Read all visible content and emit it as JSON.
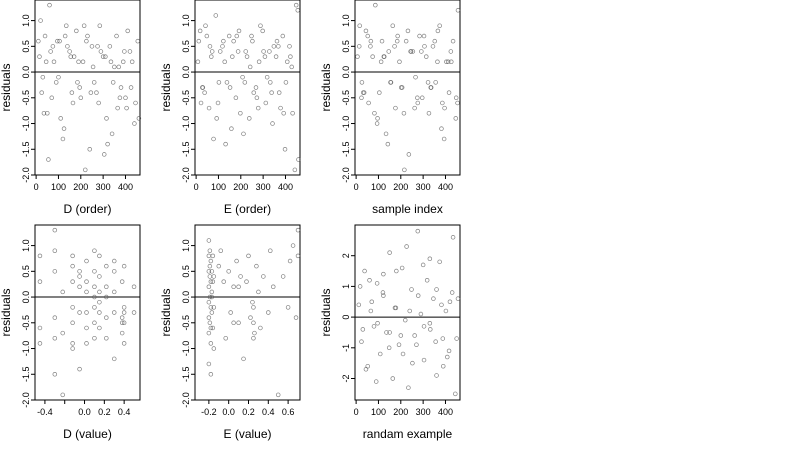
{
  "colors": {
    "point": "#555555",
    "axis": "#000000",
    "background": "#ffffff"
  },
  "chart_data": [
    {
      "type": "scatter",
      "xlabel": "D (order)",
      "ylabel": "residuals",
      "xlim": [
        -5,
        465
      ],
      "ylim": [
        -2.0,
        1.4
      ],
      "xticks": [
        0,
        100,
        200,
        300,
        400
      ],
      "xtick_labels": [
        "0",
        "100",
        "200",
        "300",
        "400"
      ],
      "yticks": [
        -2.0,
        -1.5,
        -1.0,
        -0.5,
        0.0,
        0.5,
        1.0
      ],
      "ytick_labels": [
        "-2.0",
        "-1.5",
        "-1.0",
        "-0.5",
        "0.0",
        "0.5",
        "1.0"
      ],
      "hline": 0,
      "points": {
        "x": [
          15,
          25,
          40,
          50,
          60,
          75,
          90,
          105,
          120,
          135,
          150,
          165,
          180,
          195,
          210,
          225,
          240,
          255,
          270,
          285,
          300,
          315,
          330,
          345,
          360,
          375,
          390,
          405,
          420,
          440,
          10,
          30,
          55,
          80,
          110,
          140,
          170,
          200,
          230,
          260,
          290,
          320,
          350,
          380,
          410,
          445,
          20,
          45,
          70,
          95,
          125,
          155,
          185,
          215,
          245,
          275,
          305,
          335,
          365,
          395,
          425,
          455,
          35,
          65,
          100,
          130,
          160,
          190,
          220,
          250,
          280,
          310,
          340,
          370,
          400,
          430,
          460
        ],
        "y": [
          0.3,
          -0.4,
          0.7,
          -0.8,
          1.3,
          0.5,
          -0.2,
          0.6,
          -1.3,
          0.9,
          0.4,
          -0.6,
          0.8,
          -0.3,
          0.2,
          0.6,
          -1.5,
          0.1,
          -0.4,
          0.9,
          0.3,
          -0.9,
          0.5,
          -0.2,
          0.7,
          -0.5,
          0.2,
          -0.7,
          0.4,
          -1.0,
          0.6,
          -0.1,
          -1.7,
          0.2,
          -0.9,
          0.5,
          0.3,
          -0.5,
          0.7,
          -0.2,
          0.4,
          -1.4,
          0.1,
          -0.3,
          0.8,
          -0.6,
          1.0,
          0.2,
          -0.5,
          0.6,
          -1.1,
          0.3,
          -0.2,
          0.9,
          -0.4,
          0.5,
          -1.6,
          0.2,
          -0.7,
          0.4,
          -0.3,
          0.6,
          -0.8,
          0.4,
          -0.1,
          0.7,
          -0.4,
          0.2,
          -1.9,
          0.5,
          -0.6,
          0.3,
          -1.2,
          0.1,
          -0.5,
          0.2,
          -0.9
        ]
      }
    },
    {
      "type": "scatter",
      "xlabel": "E (order)",
      "ylabel": "residuals",
      "xlim": [
        -5,
        465
      ],
      "ylim": [
        -2.0,
        1.4
      ],
      "xticks": [
        0,
        100,
        200,
        300,
        400
      ],
      "xtick_labels": [
        "0",
        "100",
        "200",
        "300",
        "400"
      ],
      "yticks": [
        -2.0,
        -1.5,
        -1.0,
        -0.5,
        0.0,
        0.5,
        1.0
      ],
      "ytick_labels": [
        "-2.0",
        "-1.5",
        "-1.0",
        "-0.5",
        "0.0",
        "0.5",
        "1.0"
      ],
      "hline": 0,
      "points": {
        "x": [
          12,
          28,
          42,
          58,
          72,
          88,
          102,
          118,
          132,
          148,
          162,
          178,
          192,
          208,
          222,
          238,
          252,
          268,
          282,
          298,
          312,
          328,
          342,
          358,
          372,
          388,
          402,
          418,
          432,
          448,
          8,
          22,
          48,
          78,
          108,
          138,
          168,
          198,
          228,
          258,
          288,
          318,
          348,
          378,
          408,
          442,
          18,
          38,
          68,
          92,
          122,
          152,
          182,
          212,
          242,
          272,
          302,
          332,
          362,
          392,
          422,
          455,
          30,
          62,
          98,
          128,
          158,
          188,
          218,
          248,
          278,
          308,
          338,
          368,
          398,
          428,
          458
        ],
        "y": [
          0.6,
          -0.3,
          0.9,
          -0.7,
          0.4,
          1.1,
          -0.2,
          0.5,
          -1.4,
          0.7,
          0.3,
          -0.5,
          0.8,
          -0.1,
          0.4,
          -0.9,
          0.6,
          -0.3,
          0.2,
          0.8,
          -0.6,
          0.4,
          -1.0,
          0.3,
          -0.4,
          0.7,
          -0.2,
          0.5,
          -0.8,
          1.3,
          0.2,
          -0.6,
          0.7,
          -1.3,
          0.4,
          -0.2,
          0.6,
          -0.8,
          0.3,
          -0.4,
          0.9,
          -0.1,
          0.5,
          -0.7,
          0.2,
          -1.9,
          0.8,
          -0.4,
          0.3,
          -0.9,
          0.6,
          -0.3,
          0.7,
          -1.2,
          0.1,
          -0.5,
          0.4,
          -0.2,
          0.6,
          -0.8,
          0.3,
          1.2,
          -0.3,
          0.5,
          -0.6,
          0.2,
          -1.1,
          0.4,
          -0.2,
          0.7,
          -0.7,
          0.3,
          -0.4,
          0.5,
          -1.5,
          0.1,
          -1.7
        ]
      }
    },
    {
      "type": "scatter",
      "xlabel": "sample index",
      "ylabel": "residuals",
      "xlim": [
        -5,
        465
      ],
      "ylim": [
        -2.0,
        1.4
      ],
      "xticks": [
        0,
        100,
        200,
        300,
        400
      ],
      "xtick_labels": [
        "0",
        "100",
        "200",
        "300",
        "400"
      ],
      "yticks": [
        -2.0,
        -1.5,
        -1.0,
        -0.5,
        0.0,
        0.5,
        1.0
      ],
      "ytick_labels": [
        "-2.0",
        "-1.5",
        "-1.0",
        "-0.5",
        "0.0",
        "0.5",
        "1.0"
      ],
      "hline": 0,
      "points": {
        "x": [
          14,
          26,
          44,
          56,
          74,
          86,
          104,
          116,
          134,
          146,
          164,
          176,
          194,
          206,
          224,
          236,
          254,
          266,
          284,
          296,
          314,
          326,
          344,
          356,
          374,
          386,
          404,
          416,
          434,
          446,
          6,
          24,
          52,
          82,
          112,
          142,
          172,
          202,
          232,
          262,
          292,
          322,
          352,
          382,
          412,
          448,
          16,
          36,
          66,
          96,
          126,
          156,
          186,
          216,
          246,
          276,
          306,
          336,
          366,
          396,
          426,
          456,
          32,
          64,
          94,
          124,
          154,
          184,
          214,
          244,
          274,
          304,
          334,
          364,
          394,
          424,
          454
        ],
        "y": [
          0.5,
          -0.2,
          0.8,
          -0.6,
          0.3,
          1.3,
          -0.4,
          0.6,
          -1.2,
          0.4,
          0.9,
          -0.7,
          0.2,
          -0.3,
          0.6,
          -1.6,
          0.4,
          -0.1,
          0.7,
          -0.5,
          0.3,
          -0.8,
          0.5,
          -0.2,
          0.9,
          -0.6,
          0.2,
          -0.4,
          0.6,
          -0.9,
          0.3,
          -0.5,
          0.7,
          -0.8,
          0.2,
          -1.4,
          0.5,
          -0.3,
          0.8,
          -0.7,
          0.4,
          -0.2,
          0.6,
          -1.1,
          0.2,
          -0.5,
          0.9,
          -0.4,
          0.6,
          -0.9,
          0.3,
          -0.2,
          0.7,
          -1.9,
          0.4,
          -0.6,
          0.5,
          -0.3,
          0.8,
          -0.7,
          0.2,
          1.2,
          -0.4,
          0.5,
          -1.0,
          0.3,
          -0.2,
          0.6,
          -0.8,
          0.4,
          -0.5,
          0.7,
          -0.3,
          0.2,
          -1.3,
          0.4,
          -0.6
        ]
      }
    },
    {
      "type": "scatter",
      "xlabel": "D (value)",
      "ylabel": "residuals",
      "xlim": [
        -0.5,
        0.56
      ],
      "ylim": [
        -2.0,
        1.4
      ],
      "xticks": [
        -0.4,
        -0.2,
        0.0,
        0.2,
        0.4
      ],
      "xtick_labels": [
        "-0.4",
        "",
        "0.0",
        "0.2",
        "0.4"
      ],
      "yticks": [
        -2.0,
        -1.5,
        -1.0,
        -0.5,
        0.0,
        0.5,
        1.0
      ],
      "ytick_labels": [
        "-2.0",
        "-1.5",
        "-1.0",
        "-0.5",
        "0.0",
        "0.5",
        "1.0"
      ],
      "hline": 0,
      "points": {
        "x": [
          -0.45,
          -0.45,
          -0.45,
          -0.3,
          -0.3,
          -0.3,
          -0.3,
          -0.22,
          -0.22,
          -0.12,
          -0.12,
          -0.12,
          -0.12,
          -0.12,
          -0.05,
          -0.05,
          -0.05,
          0.02,
          0.02,
          0.02,
          0.02,
          0.1,
          0.1,
          0.1,
          0.1,
          0.1,
          0.15,
          0.15,
          0.15,
          0.15,
          0.22,
          0.22,
          0.22,
          0.3,
          0.3,
          0.3,
          0.38,
          0.38,
          0.38,
          0.4,
          0.4,
          0.4,
          0.5,
          0.5,
          -0.45,
          -0.3,
          -0.12,
          -0.05,
          0.02,
          0.1,
          0.15,
          0.22,
          0.3,
          0.38,
          0.4,
          -0.3,
          -0.12,
          0.02,
          0.1,
          0.15,
          0.3,
          0.4,
          -0.22,
          -0.05,
          0.22
        ],
        "y": [
          0.3,
          0.8,
          -0.6,
          0.5,
          -0.4,
          -1.5,
          1.3,
          0.1,
          -0.7,
          0.6,
          0.3,
          -0.2,
          -0.5,
          0.8,
          0.2,
          -0.3,
          -1.4,
          0.7,
          0.1,
          -0.6,
          -0.3,
          0.9,
          0.5,
          0.0,
          -0.5,
          -0.8,
          0.4,
          -0.1,
          -0.6,
          0.8,
          0.6,
          0.2,
          -0.4,
          0.5,
          -0.3,
          -1.2,
          0.3,
          -0.4,
          -0.7,
          -0.2,
          -0.5,
          -0.9,
          0.2,
          -0.3,
          -0.9,
          0.9,
          -0.9,
          0.5,
          0.3,
          0.2,
          -0.3,
          -0.8,
          0.1,
          -0.5,
          0.6,
          -0.8,
          -1.0,
          -0.9,
          -0.2,
          0.1,
          0.7,
          -0.3,
          -1.9,
          0.4,
          0.0
        ]
      }
    },
    {
      "type": "scatter",
      "xlabel": "E (value)",
      "ylabel": "residuals",
      "xlim": [
        -0.34,
        0.72
      ],
      "ylim": [
        -2.0,
        1.4
      ],
      "xticks": [
        -0.2,
        0.0,
        0.2,
        0.4,
        0.6
      ],
      "xtick_labels": [
        "-0.2",
        "0.0",
        "0.2",
        "0.4",
        "0.6"
      ],
      "yticks": [
        -2.0,
        -1.5,
        -1.0,
        -0.5,
        0.0,
        0.5,
        1.0
      ],
      "ytick_labels": [
        "-2.0",
        "-1.5",
        "-1.0",
        "-0.5",
        "0.0",
        "0.5",
        "1.0"
      ],
      "hline": 0,
      "points": {
        "x": [
          -0.2,
          -0.2,
          -0.2,
          -0.2,
          -0.2,
          -0.2,
          -0.2,
          -0.19,
          -0.19,
          -0.19,
          -0.19,
          -0.18,
          -0.18,
          -0.18,
          -0.18,
          -0.17,
          -0.17,
          -0.17,
          -0.16,
          -0.16,
          -0.15,
          -0.15,
          -0.1,
          -0.08,
          -0.05,
          -0.03,
          0.0,
          0.02,
          0.05,
          0.08,
          0.1,
          0.12,
          0.15,
          0.18,
          0.2,
          0.22,
          0.25,
          0.25,
          0.25,
          0.28,
          0.3,
          0.32,
          0.35,
          0.4,
          0.42,
          0.45,
          0.5,
          0.55,
          0.6,
          0.62,
          0.65,
          0.68,
          0.7,
          0.7,
          -0.2,
          -0.18,
          -0.17,
          -0.16,
          -0.15,
          -0.19,
          -0.18,
          0.24,
          0.26,
          0.05,
          0.1
        ],
        "y": [
          1.1,
          0.8,
          0.5,
          0.2,
          -0.1,
          -0.4,
          -0.7,
          0.9,
          0.6,
          0.0,
          -0.5,
          0.7,
          0.3,
          -0.2,
          -0.9,
          0.5,
          0.1,
          -0.3,
          0.8,
          -0.6,
          0.4,
          -1.0,
          0.6,
          0.9,
          0.3,
          -0.8,
          0.5,
          -0.3,
          0.2,
          0.7,
          -0.5,
          0.4,
          -1.2,
          0.3,
          0.8,
          -0.4,
          -0.2,
          -0.5,
          -0.8,
          0.6,
          0.1,
          -0.6,
          0.4,
          -0.3,
          0.9,
          0.2,
          -1.9,
          0.4,
          -0.2,
          0.7,
          1.0,
          -0.4,
          1.3,
          0.8,
          -1.3,
          -1.5,
          0.0,
          0.3,
          -0.2,
          0.4,
          -0.6,
          -0.1,
          -0.7,
          -0.5,
          0.2
        ]
      }
    },
    {
      "type": "scatter",
      "xlabel": "randam example",
      "ylabel": "residuals",
      "xlim": [
        -5,
        465
      ],
      "ylim": [
        -2.7,
        3.0
      ],
      "xticks": [
        0,
        100,
        200,
        300,
        400
      ],
      "xtick_labels": [
        "0",
        "100",
        "200",
        "300",
        "400"
      ],
      "yticks": [
        -2,
        -1,
        0,
        1,
        2
      ],
      "ytick_labels": [
        "-2",
        "-1",
        "0",
        "1",
        "2"
      ],
      "hline": 0,
      "points": {
        "x": [
          12,
          24,
          38,
          52,
          66,
          80,
          94,
          108,
          122,
          136,
          150,
          164,
          178,
          192,
          206,
          220,
          234,
          248,
          262,
          276,
          290,
          304,
          318,
          332,
          346,
          360,
          374,
          388,
          402,
          416,
          430,
          444,
          18,
          44,
          70,
          96,
          122,
          148,
          174,
          200,
          226,
          252,
          278,
          304,
          330,
          356,
          382,
          408,
          434,
          456,
          30,
          60,
          90,
          120,
          150,
          180,
          210,
          240,
          270,
          300,
          330,
          360,
          390,
          420,
          450
        ],
        "y": [
          0.4,
          -0.8,
          1.5,
          -1.6,
          0.2,
          -0.3,
          1.1,
          -1.2,
          0.7,
          -0.5,
          2.1,
          -2.0,
          0.3,
          -0.9,
          1.6,
          -0.1,
          -2.3,
          0.9,
          -0.6,
          2.8,
          0.1,
          -1.4,
          1.2,
          -0.4,
          0.6,
          -1.9,
          1.8,
          -0.7,
          0.2,
          -1.1,
          0.8,
          -2.5,
          1.0,
          -1.7,
          0.5,
          -0.2,
          1.4,
          -1.0,
          0.3,
          -0.6,
          2.3,
          -1.5,
          0.7,
          -0.3,
          1.9,
          -0.8,
          0.4,
          -1.3,
          2.6,
          0.6,
          -0.4,
          1.2,
          -2.1,
          0.8,
          -0.5,
          1.5,
          -1.2,
          0.2,
          -0.9,
          1.7,
          -0.2,
          0.9,
          -1.6,
          0.5,
          -0.7
        ]
      }
    }
  ]
}
